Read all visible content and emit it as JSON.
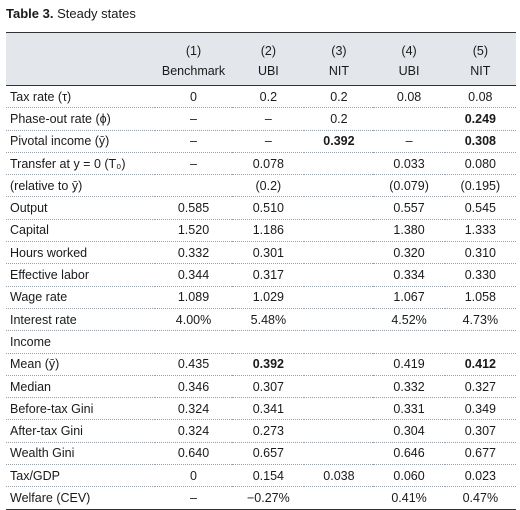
{
  "caption": {
    "label": "Table 3.",
    "title": "Steady states"
  },
  "header": {
    "numbers": [
      "(1)",
      "(2)",
      "(3)",
      "(4)",
      "(5)"
    ],
    "names": [
      "Benchmark",
      "UBI",
      "NIT",
      "UBI",
      "NIT"
    ]
  },
  "rows": [
    {
      "label": "Tax rate (τ)",
      "cells": [
        "0",
        "0.2",
        "0.2",
        "0.08",
        "0.08"
      ],
      "bold": []
    },
    {
      "label": "Phase-out rate (ϕ)",
      "cells": [
        "–",
        "–",
        "0.2",
        "",
        "0.249"
      ],
      "bold": [
        4
      ]
    },
    {
      "label": "Pivotal income (ȳ)",
      "cells": [
        "–",
        "–",
        "0.392",
        "–",
        "0.308"
      ],
      "bold": [
        2,
        4
      ]
    },
    {
      "label": "Transfer at y = 0 (T₀)",
      "cells": [
        "–",
        "0.078",
        "",
        "0.033",
        "0.080"
      ],
      "bold": []
    },
    {
      "label": "(relative to ȳ)",
      "cells": [
        "",
        "(0.2)",
        "",
        "(0.079)",
        "(0.195)"
      ],
      "bold": []
    },
    {
      "label": "Output",
      "cells": [
        "0.585",
        "0.510",
        "",
        "0.557",
        "0.545"
      ],
      "bold": []
    },
    {
      "label": "Capital",
      "cells": [
        "1.520",
        "1.186",
        "",
        "1.380",
        "1.333"
      ],
      "bold": []
    },
    {
      "label": "Hours worked",
      "cells": [
        "0.332",
        "0.301",
        "",
        "0.320",
        "0.310"
      ],
      "bold": []
    },
    {
      "label": "Effective labor",
      "cells": [
        "0.344",
        "0.317",
        "",
        "0.334",
        "0.330"
      ],
      "bold": []
    },
    {
      "label": "Wage rate",
      "cells": [
        "1.089",
        "1.029",
        "",
        "1.067",
        "1.058"
      ],
      "bold": []
    },
    {
      "label": "Interest rate",
      "cells": [
        "4.00%",
        "5.48%",
        "",
        "4.52%",
        "4.73%"
      ],
      "bold": []
    },
    {
      "label": "Income",
      "cells": [
        "",
        "",
        "",
        "",
        ""
      ],
      "bold": []
    },
    {
      "label": "Mean (ȳ)",
      "cells": [
        "0.435",
        "0.392",
        "",
        "0.419",
        "0.412"
      ],
      "bold": [
        1,
        4
      ]
    },
    {
      "label": "Median",
      "cells": [
        "0.346",
        "0.307",
        "",
        "0.332",
        "0.327"
      ],
      "bold": []
    },
    {
      "label": "Before-tax Gini",
      "cells": [
        "0.324",
        "0.341",
        "",
        "0.331",
        "0.349"
      ],
      "bold": []
    },
    {
      "label": "After-tax Gini",
      "cells": [
        "0.324",
        "0.273",
        "",
        "0.304",
        "0.307"
      ],
      "bold": []
    },
    {
      "label": "Wealth Gini",
      "cells": [
        "0.640",
        "0.657",
        "",
        "0.646",
        "0.677"
      ],
      "bold": []
    },
    {
      "label": "Tax/GDP",
      "cells": [
        "0",
        "0.154",
        "0.038",
        "0.060",
        "0.023"
      ],
      "bold": []
    },
    {
      "label": "Welfare (CEV)",
      "cells": [
        "–",
        "−0.27%",
        "",
        "0.41%",
        "0.47%"
      ],
      "bold": []
    }
  ]
}
